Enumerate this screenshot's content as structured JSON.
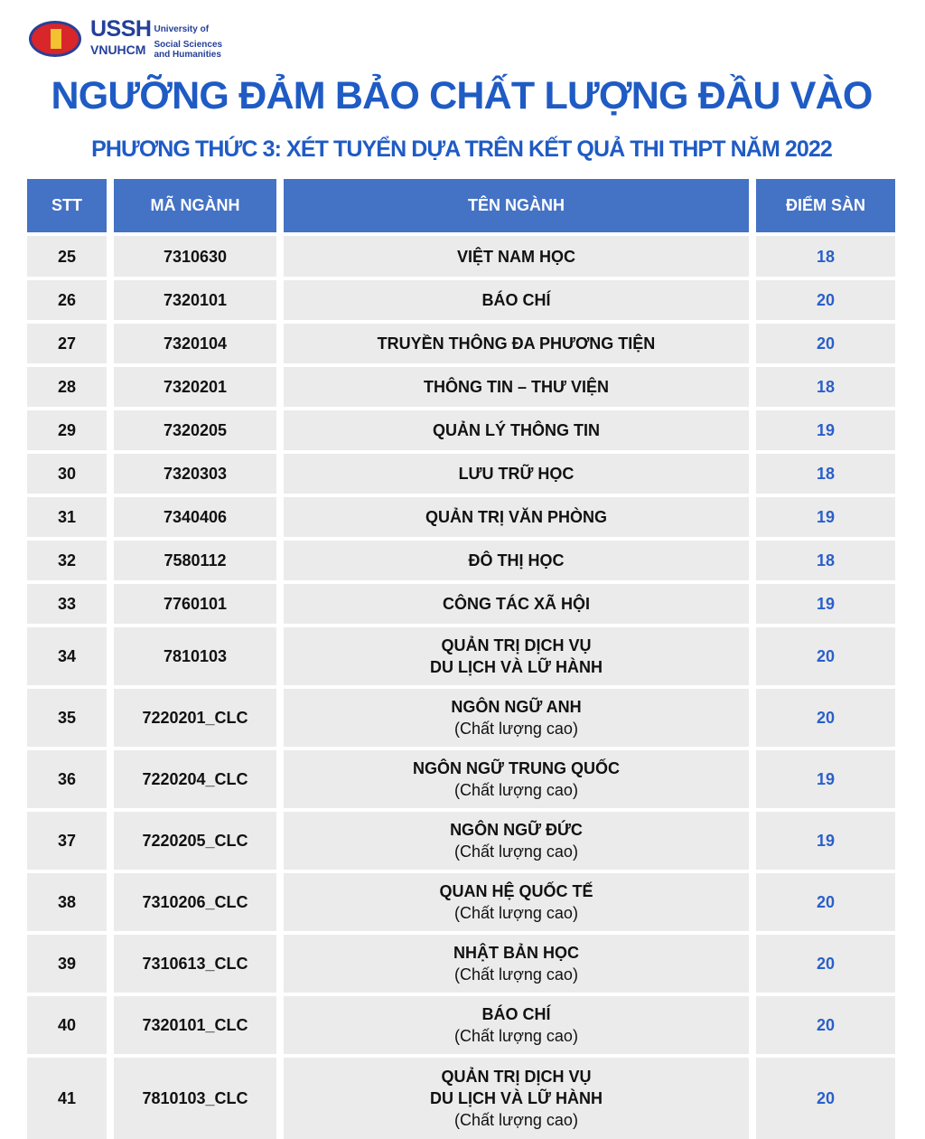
{
  "logo": {
    "abbr": "USSH",
    "sub": "VNUHCM",
    "line1": "University of",
    "line2": "Social Sciences",
    "line3": "and Humanities"
  },
  "title": "NGƯỠNG ĐẢM BẢO CHẤT LƯỢNG ĐẦU VÀO",
  "subtitle": "PHƯƠNG THỨC 3:  XÉT TUYỂN DỰA TRÊN KẾT QUẢ THI THPT NĂM 2022",
  "colors": {
    "header": "#4472c4",
    "title": "#1f5bc4",
    "score": "#2a5fc9",
    "cell": "#ebebeb"
  },
  "table": {
    "headers": [
      "STT",
      "MÃ NGÀNH",
      "TÊN NGÀNH",
      "ĐIỂM SÀN"
    ],
    "rows": [
      {
        "stt": "25",
        "code": "7310630",
        "name": [
          "VIỆT NAM HỌC"
        ],
        "note": "",
        "score": "18"
      },
      {
        "stt": "26",
        "code": "7320101",
        "name": [
          "BÁO CHÍ"
        ],
        "note": "",
        "score": "20"
      },
      {
        "stt": "27",
        "code": "7320104",
        "name": [
          "TRUYỀN THÔNG ĐA PHƯƠNG TIỆN"
        ],
        "note": "",
        "score": "20"
      },
      {
        "stt": "28",
        "code": "7320201",
        "name": [
          "THÔNG TIN – THƯ VIỆN"
        ],
        "note": "",
        "score": "18"
      },
      {
        "stt": "29",
        "code": "7320205",
        "name": [
          "QUẢN LÝ THÔNG TIN"
        ],
        "note": "",
        "score": "19"
      },
      {
        "stt": "30",
        "code": "7320303",
        "name": [
          "LƯU TRỮ HỌC"
        ],
        "note": "",
        "score": "18"
      },
      {
        "stt": "31",
        "code": "7340406",
        "name": [
          "QUẢN TRỊ VĂN PHÒNG"
        ],
        "note": "",
        "score": "19"
      },
      {
        "stt": "32",
        "code": "7580112",
        "name": [
          "ĐÔ THỊ HỌC"
        ],
        "note": "",
        "score": "18"
      },
      {
        "stt": "33",
        "code": "7760101",
        "name": [
          "CÔNG TÁC XÃ HỘI"
        ],
        "note": "",
        "score": "19"
      },
      {
        "stt": "34",
        "code": "7810103",
        "name": [
          "QUẢN TRỊ DỊCH VỤ",
          "DU LỊCH VÀ LỮ HÀNH"
        ],
        "note": "",
        "score": "20"
      },
      {
        "stt": "35",
        "code": "7220201_CLC",
        "name": [
          "NGÔN NGỮ ANH"
        ],
        "note": "(Chất lượng cao)",
        "score": "20"
      },
      {
        "stt": "36",
        "code": "7220204_CLC",
        "name": [
          "NGÔN NGỮ TRUNG QUỐC"
        ],
        "note": "(Chất lượng cao)",
        "score": "19"
      },
      {
        "stt": "37",
        "code": "7220205_CLC",
        "name": [
          "NGÔN NGỮ ĐỨC"
        ],
        "note": "(Chất lượng cao)",
        "score": "19"
      },
      {
        "stt": "38",
        "code": "7310206_CLC",
        "name": [
          "QUAN HỆ QUỐC TẾ"
        ],
        "note": "(Chất lượng cao)",
        "score": "20"
      },
      {
        "stt": "39",
        "code": "7310613_CLC",
        "name": [
          "NHẬT BẢN HỌC"
        ],
        "note": "(Chất lượng cao)",
        "score": "20"
      },
      {
        "stt": "40",
        "code": "7320101_CLC",
        "name": [
          "BÁO CHÍ"
        ],
        "note": "(Chất lượng cao)",
        "score": "20"
      },
      {
        "stt": "41",
        "code": "7810103_CLC",
        "name": [
          "QUẢN TRỊ DỊCH VỤ",
          "DU LỊCH VÀ LỮ HÀNH"
        ],
        "note": "(Chất lượng cao)",
        "score": "20"
      }
    ]
  }
}
